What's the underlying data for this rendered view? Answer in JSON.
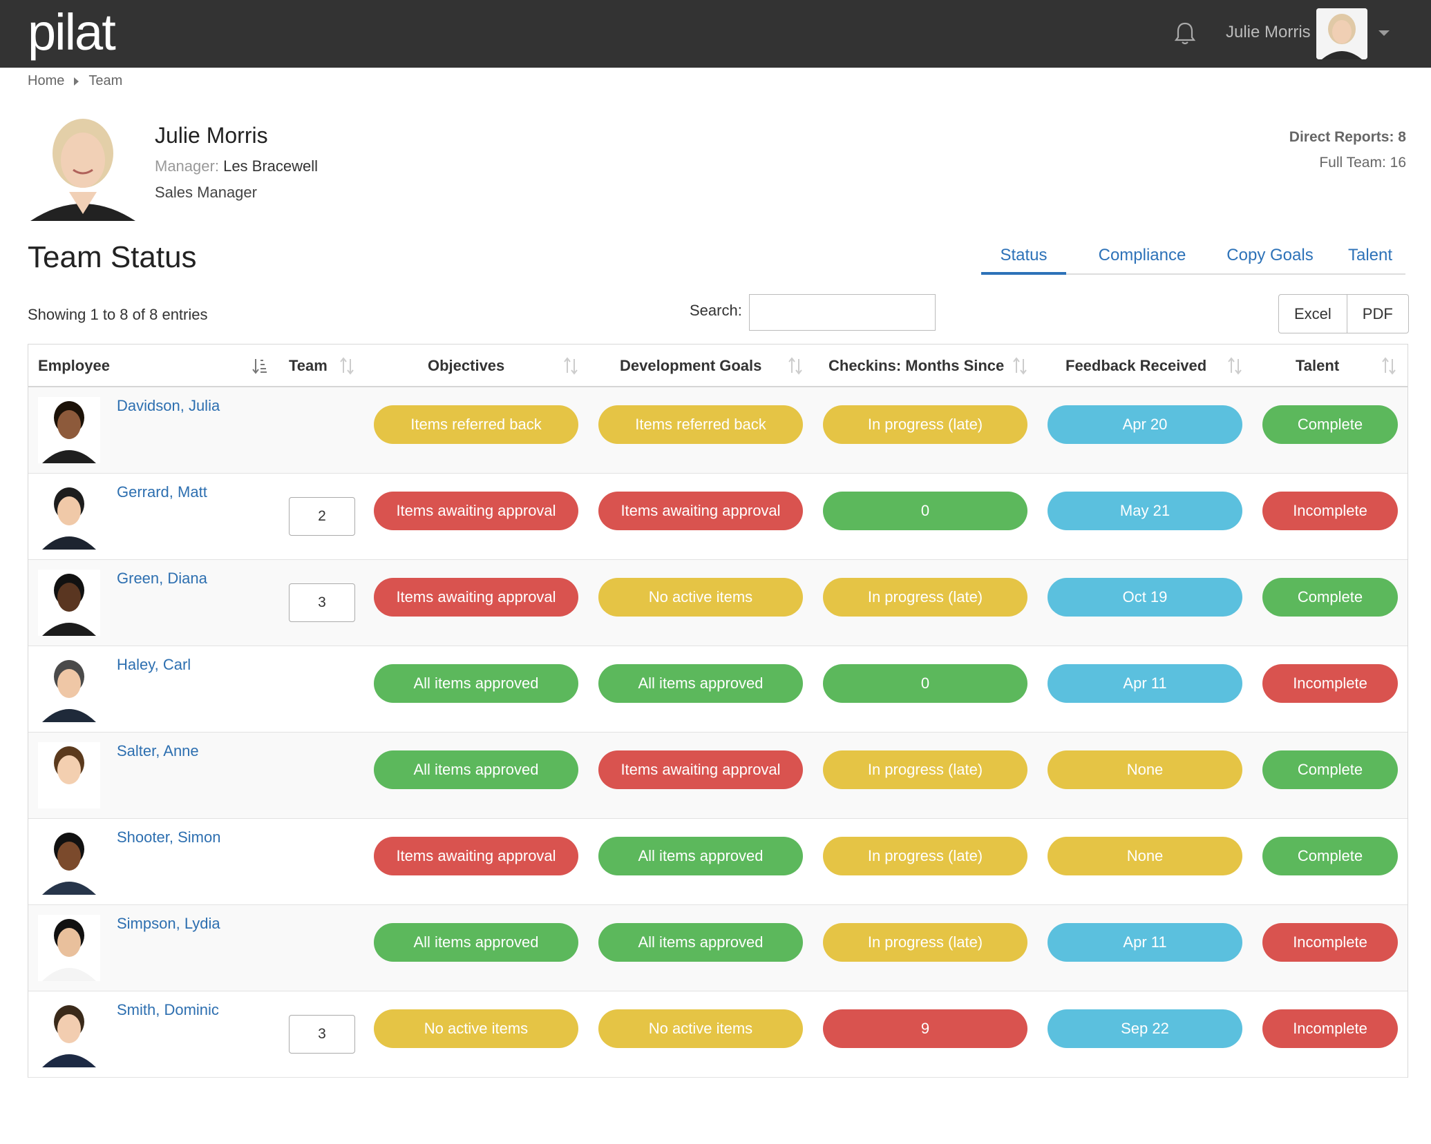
{
  "app": {
    "logo": "pilat"
  },
  "topbar": {
    "user_name": "Julie Morris"
  },
  "breadcrumb": [
    "Home",
    "Team"
  ],
  "profile": {
    "name": "Julie Morris",
    "manager_label": "Manager:",
    "manager_name": "Les Bracewell",
    "job_title": "Sales Manager",
    "direct_reports": "Direct Reports: 8",
    "full_team": "Full Team: 16"
  },
  "section_title": "Team Status",
  "tabs": [
    {
      "label": "Status",
      "active": true
    },
    {
      "label": "Compliance",
      "active": false
    },
    {
      "label": "Copy Goals",
      "active": false
    },
    {
      "label": "Talent",
      "active": false
    }
  ],
  "table_info": "Showing 1 to 8 of 8 entries",
  "search": {
    "label": "Search:",
    "value": "",
    "placeholder": ""
  },
  "exports": [
    "Excel",
    "PDF"
  ],
  "columns": [
    "Employee",
    "Team",
    "Objectives",
    "Development Goals",
    "Checkins: Months Since",
    "Feedback Received",
    "Talent"
  ],
  "status_colors": {
    "yellow": "#e5c445",
    "red": "#d9534f",
    "green": "#5cb85c",
    "blue": "#5bc0de"
  },
  "rows": [
    {
      "name": "Davidson, Julia",
      "team": "",
      "objectives": {
        "text": "Items referred back",
        "color": "yellow"
      },
      "dev_goals": {
        "text": "Items referred back",
        "color": "yellow"
      },
      "checkins": {
        "text": "In progress (late)",
        "color": "yellow"
      },
      "feedback": {
        "text": "Apr 20",
        "color": "blue"
      },
      "talent": {
        "text": "Complete",
        "color": "green"
      }
    },
    {
      "name": "Gerrard, Matt",
      "team": "2",
      "objectives": {
        "text": "Items awaiting approval",
        "color": "red"
      },
      "dev_goals": {
        "text": "Items awaiting approval",
        "color": "red"
      },
      "checkins": {
        "text": "0",
        "color": "green"
      },
      "feedback": {
        "text": "May 21",
        "color": "blue"
      },
      "talent": {
        "text": "Incomplete",
        "color": "red"
      }
    },
    {
      "name": "Green, Diana",
      "team": "3",
      "objectives": {
        "text": "Items awaiting approval",
        "color": "red"
      },
      "dev_goals": {
        "text": "No active items",
        "color": "yellow"
      },
      "checkins": {
        "text": "In progress (late)",
        "color": "yellow"
      },
      "feedback": {
        "text": "Oct 19",
        "color": "blue"
      },
      "talent": {
        "text": "Complete",
        "color": "green"
      }
    },
    {
      "name": "Haley, Carl",
      "team": "",
      "objectives": {
        "text": "All items approved",
        "color": "green"
      },
      "dev_goals": {
        "text": "All items approved",
        "color": "green"
      },
      "checkins": {
        "text": "0",
        "color": "green"
      },
      "feedback": {
        "text": "Apr 11",
        "color": "blue"
      },
      "talent": {
        "text": "Incomplete",
        "color": "red"
      }
    },
    {
      "name": "Salter, Anne",
      "team": "",
      "objectives": {
        "text": "All items approved",
        "color": "green"
      },
      "dev_goals": {
        "text": "Items awaiting approval",
        "color": "red"
      },
      "checkins": {
        "text": "In progress (late)",
        "color": "yellow"
      },
      "feedback": {
        "text": "None",
        "color": "yellow"
      },
      "talent": {
        "text": "Complete",
        "color": "green"
      }
    },
    {
      "name": "Shooter, Simon",
      "team": "",
      "objectives": {
        "text": "Items awaiting approval",
        "color": "red"
      },
      "dev_goals": {
        "text": "All items approved",
        "color": "green"
      },
      "checkins": {
        "text": "In progress (late)",
        "color": "yellow"
      },
      "feedback": {
        "text": "None",
        "color": "yellow"
      },
      "talent": {
        "text": "Complete",
        "color": "green"
      }
    },
    {
      "name": "Simpson, Lydia",
      "team": "",
      "objectives": {
        "text": "All items approved",
        "color": "green"
      },
      "dev_goals": {
        "text": "All items approved",
        "color": "green"
      },
      "checkins": {
        "text": "In progress (late)",
        "color": "yellow"
      },
      "feedback": {
        "text": "Apr 11",
        "color": "blue"
      },
      "talent": {
        "text": "Incomplete",
        "color": "red"
      }
    },
    {
      "name": "Smith, Dominic",
      "team": "3",
      "objectives": {
        "text": "No active items",
        "color": "yellow"
      },
      "dev_goals": {
        "text": "No active items",
        "color": "yellow"
      },
      "checkins": {
        "text": "9",
        "color": "red"
      },
      "feedback": {
        "text": "Sep 22",
        "color": "blue"
      },
      "talent": {
        "text": "Incomplete",
        "color": "red"
      }
    }
  ]
}
